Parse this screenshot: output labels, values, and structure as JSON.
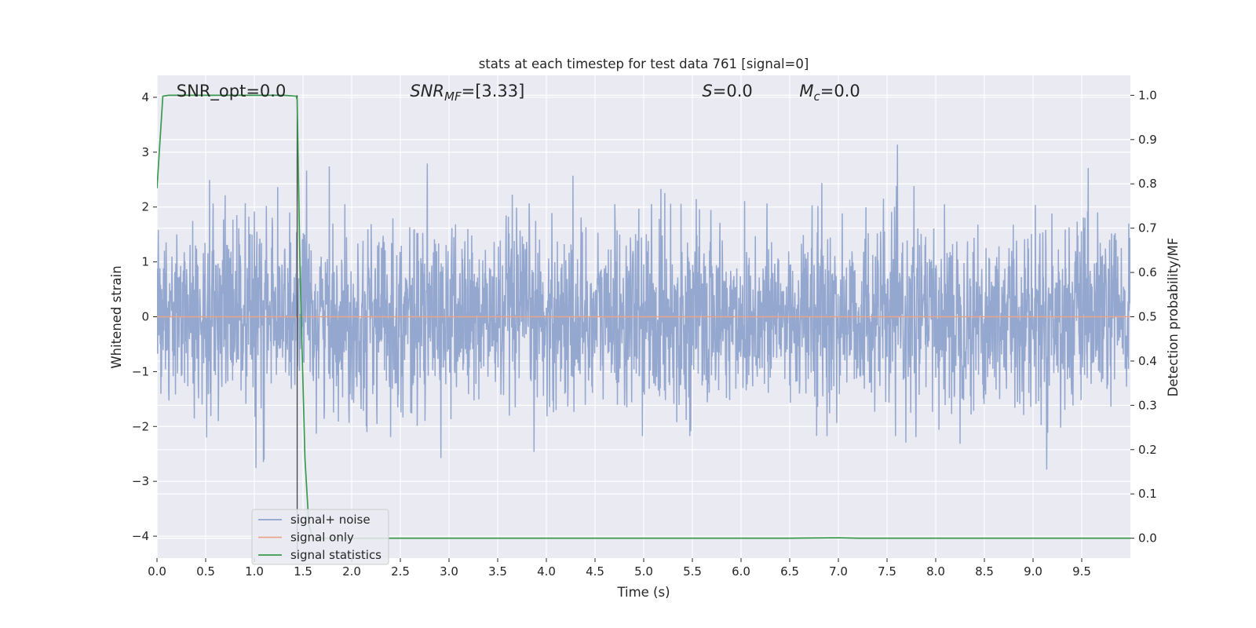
{
  "chart_data": {
    "type": "line",
    "title": "stats at each timestep for test data 761 [signal=0]",
    "xlabel": "Time (s)",
    "ylabel": "Whitened strain",
    "y2label": "Detection probability/MF",
    "xlim": [
      0.0,
      10.0
    ],
    "ylim": [
      -4.4,
      4.4
    ],
    "y2lim": [
      -0.045,
      1.045
    ],
    "x_ticks": [
      "0.0",
      "0.5",
      "1.0",
      "1.5",
      "2.0",
      "2.5",
      "3.0",
      "3.5",
      "4.0",
      "4.5",
      "5.0",
      "5.5",
      "6.0",
      "6.5",
      "7.0",
      "7.5",
      "8.0",
      "8.5",
      "9.0",
      "9.5"
    ],
    "x_tick_values": [
      0.0,
      0.5,
      1.0,
      1.5,
      2.0,
      2.5,
      3.0,
      3.5,
      4.0,
      4.5,
      5.0,
      5.5,
      6.0,
      6.5,
      7.0,
      7.5,
      8.0,
      8.5,
      9.0,
      9.5
    ],
    "y_ticks": [
      "4",
      "3",
      "2",
      "1",
      "0",
      "−1",
      "−2",
      "−3",
      "−4"
    ],
    "y_tick_values": [
      4,
      3,
      2,
      1,
      0,
      -1,
      -2,
      -3,
      -4
    ],
    "y2_ticks": [
      "1.0",
      "0.9",
      "0.8",
      "0.7",
      "0.6",
      "0.5",
      "0.4",
      "0.3",
      "0.2",
      "0.1",
      "0.0"
    ],
    "y2_tick_values": [
      1.0,
      0.9,
      0.8,
      0.7,
      0.6,
      0.5,
      0.4,
      0.3,
      0.2,
      0.1,
      0.0
    ],
    "grid": true,
    "legend_position": "lower-left",
    "annotations": [
      {
        "text": "SNR_opt=0.0",
        "x": 0.2
      },
      {
        "text_main": "SNR",
        "text_sub": "MF",
        "text_rest": "=[3.33]",
        "x": 2.6
      },
      {
        "text_main": "S",
        "text_rest": "=0.0",
        "x": 5.6
      },
      {
        "text_main": "M",
        "text_sub": "c",
        "text_rest": "=0.0",
        "x": 6.6
      }
    ],
    "marker_line_x": 1.44,
    "series": [
      {
        "name": "signal+ noise",
        "color": "#8fa3cc",
        "axis": "left",
        "style": "noise",
        "sample_rate": 300,
        "seed": 761,
        "sigma": 0.82
      },
      {
        "name": "signal only",
        "color": "#e8a58a",
        "axis": "left",
        "x": [
          0.0,
          10.0
        ],
        "y": [
          0.0,
          0.0
        ]
      },
      {
        "name": "signal statistics",
        "color": "#3a9a4e",
        "axis": "right",
        "x": [
          0.0,
          0.06,
          0.12,
          0.5,
          1.0,
          1.3,
          1.43,
          1.44,
          1.47,
          1.52,
          1.56,
          1.6,
          2.0,
          6.5,
          7.0,
          7.2,
          10.0
        ],
        "y": [
          0.79,
          0.998,
          1.0,
          1.0,
          1.0,
          1.0,
          0.998,
          0.99,
          0.6,
          0.18,
          0.03,
          0.0,
          0.0,
          0.0,
          0.001,
          0.0,
          0.0
        ]
      }
    ]
  },
  "colors": {
    "plot_bg": "#eaeaf2",
    "grid": "#ffffff",
    "marker_line": "#444444"
  }
}
